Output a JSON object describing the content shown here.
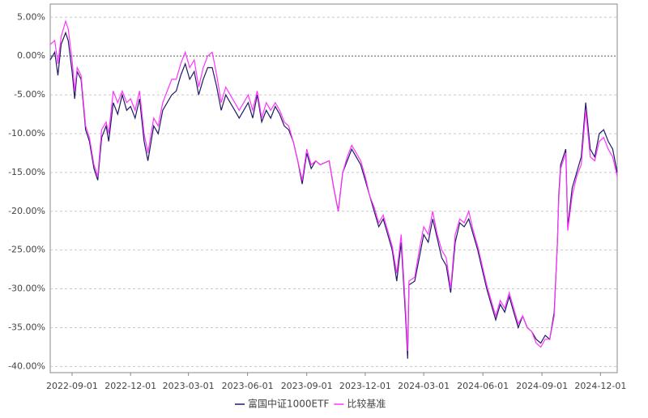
{
  "chart_data": {
    "type": "line",
    "x": [
      "2022-07-29",
      "2022-08-05",
      "2022-08-10",
      "2022-08-15",
      "2022-08-22",
      "2022-08-26",
      "2022-09-01",
      "2022-09-05",
      "2022-09-09",
      "2022-09-15",
      "2022-09-22",
      "2022-09-28",
      "2022-10-05",
      "2022-10-11",
      "2022-10-17",
      "2022-10-24",
      "2022-10-28",
      "2022-11-04",
      "2022-11-11",
      "2022-11-18",
      "2022-11-25",
      "2022-12-01",
      "2022-12-08",
      "2022-12-15",
      "2022-12-22",
      "2022-12-28",
      "2023-01-06",
      "2023-01-13",
      "2023-01-20",
      "2023-02-03",
      "2023-02-10",
      "2023-02-17",
      "2023-02-24",
      "2023-03-03",
      "2023-03-10",
      "2023-03-17",
      "2023-03-24",
      "2023-03-31",
      "2023-04-07",
      "2023-04-14",
      "2023-04-21",
      "2023-04-28",
      "2023-05-05",
      "2023-05-12",
      "2023-05-19",
      "2023-05-26",
      "2023-06-02",
      "2023-06-09",
      "2023-06-16",
      "2023-06-23",
      "2023-06-30",
      "2023-07-07",
      "2023-07-14",
      "2023-07-21",
      "2023-07-28",
      "2023-08-04",
      "2023-08-11",
      "2023-08-18",
      "2023-08-25",
      "2023-09-01",
      "2023-09-08",
      "2023-09-15",
      "2023-09-22",
      "2023-10-06",
      "2023-10-13",
      "2023-10-20",
      "2023-10-27",
      "2023-11-03",
      "2023-11-10",
      "2023-11-17",
      "2023-11-24",
      "2023-12-01",
      "2023-12-08",
      "2023-12-15",
      "2023-12-22",
      "2023-12-29",
      "2024-01-05",
      "2024-01-12",
      "2024-01-19",
      "2024-01-26",
      "2024-02-02",
      "2024-02-05",
      "2024-02-07",
      "2024-02-16",
      "2024-02-23",
      "2024-03-01",
      "2024-03-08",
      "2024-03-15",
      "2024-03-22",
      "2024-03-29",
      "2024-04-05",
      "2024-04-12",
      "2024-04-19",
      "2024-04-26",
      "2024-05-03",
      "2024-05-10",
      "2024-05-17",
      "2024-05-24",
      "2024-05-31",
      "2024-06-07",
      "2024-06-14",
      "2024-06-21",
      "2024-06-28",
      "2024-07-05",
      "2024-07-12",
      "2024-07-19",
      "2024-07-26",
      "2024-08-02",
      "2024-08-09",
      "2024-08-16",
      "2024-08-23",
      "2024-08-30",
      "2024-09-06",
      "2024-09-13",
      "2024-09-20",
      "2024-09-25",
      "2024-09-27",
      "2024-09-30",
      "2024-10-08",
      "2024-10-11",
      "2024-10-18",
      "2024-10-25",
      "2024-11-01",
      "2024-11-08",
      "2024-11-15",
      "2024-11-22",
      "2024-11-29",
      "2024-12-06",
      "2024-12-13",
      "2024-12-20",
      "2024-12-27"
    ],
    "series": [
      {
        "name": "富国中证1000ETF",
        "color": "#1f1a66",
        "values": [
          -0.5,
          0.5,
          -2.5,
          1.5,
          3.0,
          2.0,
          -2.0,
          -5.5,
          -2.0,
          -3.0,
          -9.5,
          -11,
          -14.5,
          -16.0,
          -10.5,
          -9,
          -11,
          -6,
          -7.5,
          -5,
          -7,
          -6.5,
          -8,
          -5.5,
          -11,
          -13.5,
          -9,
          -10,
          -7,
          -5,
          -4.5,
          -2.5,
          -1,
          -3,
          -2,
          -5,
          -3,
          -1.5,
          -1.5,
          -4,
          -7,
          -5,
          -6,
          -7,
          -8,
          -7,
          -6,
          -8,
          -5,
          -8.5,
          -7,
          -8,
          -6.5,
          -7.5,
          -9,
          -9.5,
          -11,
          -13.5,
          -16.5,
          -12.5,
          -14.5,
          -13.5,
          -14,
          -13.5,
          -17,
          -20,
          -15,
          -13.5,
          -12,
          -13,
          -14,
          -16,
          -18,
          -20,
          -22,
          -21,
          -23,
          -25,
          -29,
          -24,
          -34,
          -39,
          -29.5,
          -29,
          -26,
          -23,
          -24,
          -21,
          -23.5,
          -26,
          -27,
          -30.5,
          -24,
          -21.5,
          -22,
          -21,
          -23,
          -25,
          -27.5,
          -30,
          -32,
          -34,
          -32,
          -33,
          -31,
          -33,
          -35,
          -33.5,
          -35,
          -35.5,
          -36.5,
          -37,
          -36,
          -36.5,
          -33,
          -24,
          -18,
          -14,
          -12,
          -22,
          -17,
          -15,
          -13,
          -6,
          -12,
          -13,
          -10,
          -9.5,
          -11,
          -12,
          -15
        ]
      },
      {
        "name": "比较基准",
        "color": "#ff33ff",
        "values": [
          1.5,
          2.0,
          -1,
          2.5,
          4.5,
          3.5,
          -0.5,
          -4.5,
          -1.5,
          -2.5,
          -9,
          -10.5,
          -14,
          -15.5,
          -9.5,
          -8.5,
          -10,
          -4.5,
          -6,
          -4.5,
          -6,
          -5.5,
          -7,
          -4.5,
          -10,
          -12.5,
          -8,
          -9,
          -6,
          -3,
          -3,
          -1,
          0.5,
          -1.5,
          -0.5,
          -4,
          -1.5,
          0,
          0.5,
          -2.5,
          -6,
          -4,
          -5,
          -6,
          -7,
          -6,
          -5,
          -7,
          -4.5,
          -8,
          -6,
          -7,
          -6,
          -7,
          -8.5,
          -9,
          -11,
          -13.5,
          -16,
          -12,
          -14,
          -13.5,
          -14,
          -13.5,
          -17,
          -20,
          -15,
          -13,
          -11.5,
          -12.5,
          -13.5,
          -15.5,
          -18,
          -19.5,
          -21.5,
          -20.5,
          -22.5,
          -24.5,
          -28,
          -23,
          -33,
          -38,
          -29,
          -28.5,
          -25,
          -22,
          -23,
          -20,
          -23,
          -25,
          -26,
          -30,
          -23,
          -21,
          -21.5,
          -20,
          -22.5,
          -24.5,
          -27,
          -29.5,
          -31.5,
          -33.5,
          -31.5,
          -32.5,
          -30.5,
          -32.5,
          -34.5,
          -33.5,
          -35,
          -35.5,
          -37,
          -37.5,
          -36.5,
          -36.5,
          -33.5,
          -24,
          -18.5,
          -14.5,
          -12.5,
          -22.5,
          -18,
          -15.5,
          -14,
          -7,
          -13,
          -13.5,
          -11,
          -10.5,
          -12,
          -13,
          -15.5
        ]
      }
    ],
    "xlim": [
      "2022-07-29",
      "2024-12-27"
    ],
    "xticks": [
      "2022-09-01",
      "2022-12-01",
      "2023-03-01",
      "2023-06-01",
      "2023-09-01",
      "2023-12-01",
      "2024-03-01",
      "2024-06-01",
      "2024-09-01",
      "2024-12-01"
    ],
    "ylim": [
      -40.8,
      6.7
    ],
    "yticks": [
      {
        "value": 5,
        "label": "5.00%"
      },
      {
        "value": 0,
        "label": "0.00%"
      },
      {
        "value": -5,
        "label": "-5.00%"
      },
      {
        "value": -10,
        "label": "-10.00%"
      },
      {
        "value": -15,
        "label": "-15.00%"
      },
      {
        "value": -20,
        "label": "-20.00%"
      },
      {
        "value": -25,
        "label": "-25.00%"
      },
      {
        "value": -30,
        "label": "-30.00%"
      },
      {
        "value": -35,
        "label": "-35.00%"
      },
      {
        "value": -40,
        "label": "-40.00%"
      }
    ],
    "grid": true
  }
}
